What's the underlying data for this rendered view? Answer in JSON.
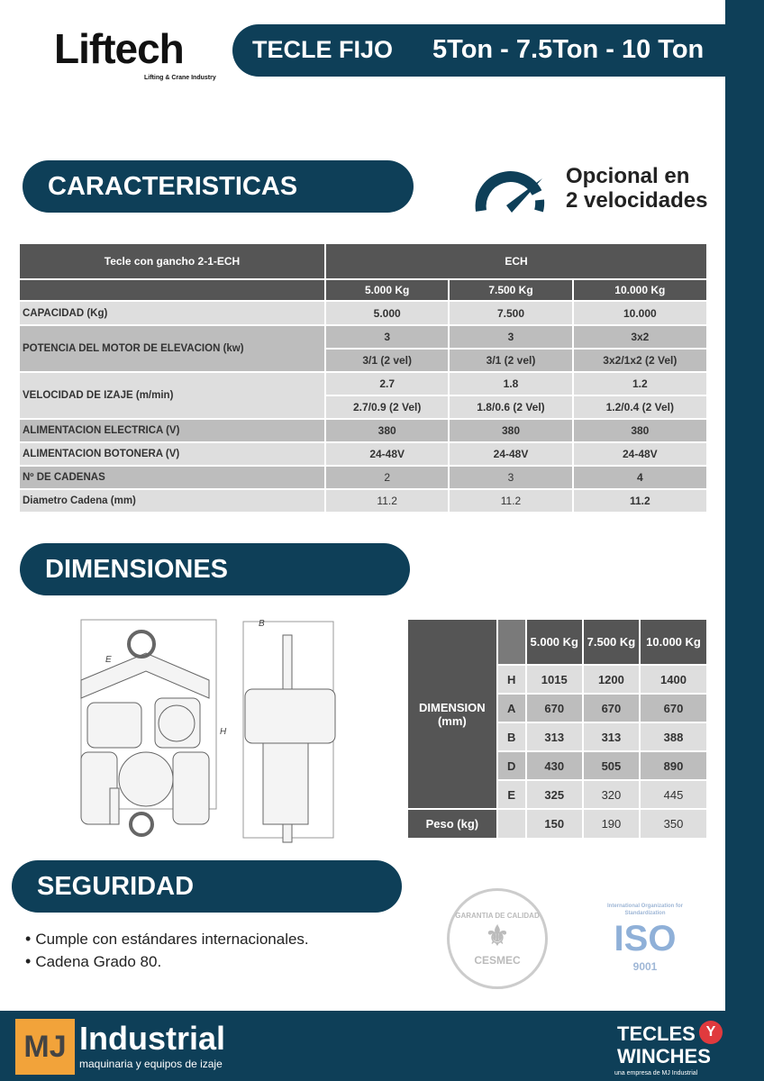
{
  "header": {
    "brand": "Liftech",
    "brand_sub": "Lifting & Crane Industry",
    "title": "TECLE FIJO",
    "capacities": "5Ton - 7.5Ton - 10 Ton"
  },
  "sections": {
    "caracteristicas": "CARACTERISTICAS",
    "dimensiones": "DIMENSIONES",
    "seguridad": "SEGURIDAD"
  },
  "optional": {
    "line1": "Opcional en",
    "line2": "2 velocidades",
    "icon": "speedometer-icon"
  },
  "specs": {
    "title": "Tecle con gancho 2-1-ECH",
    "model": "ECH",
    "columns": [
      "5.000 Kg",
      "7.500 Kg",
      "10.000 Kg"
    ],
    "rows": [
      {
        "label": "CAPACIDAD (Kg)",
        "values": [
          "5.000",
          "7.500",
          "10.000"
        ]
      },
      {
        "label": "POTENCIA DEL MOTOR DE ELEVACION (kw)",
        "values": [
          "3",
          "3",
          "3x2"
        ],
        "values2": [
          "3/1 (2 vel)",
          "3/1 (2 vel)",
          "3x2/1x2 (2 Vel)"
        ]
      },
      {
        "label": "VELOCIDAD DE IZAJE (m/min)",
        "values": [
          "2.7",
          "1.8",
          "1.2"
        ],
        "values2": [
          "2.7/0.9 (2 Vel)",
          "1.8/0.6 (2 Vel)",
          "1.2/0.4 (2 Vel)"
        ]
      },
      {
        "label": "ALIMENTACION ELECTRICA (V)",
        "values": [
          "380",
          "380",
          "380"
        ]
      },
      {
        "label": "ALIMENTACION BOTONERA (V)",
        "values": [
          "24-48V",
          "24-48V",
          "24-48V"
        ]
      },
      {
        "label": "Nº DE CADENAS",
        "values": [
          "2",
          "3",
          "4"
        ]
      },
      {
        "label": "Diametro Cadena (mm)",
        "values": [
          "11.2",
          "11.2",
          "11.2"
        ]
      }
    ]
  },
  "dimensions": {
    "label": "DIMENSION (mm)",
    "columns": [
      "5.000 Kg",
      "7.500 Kg",
      "10.000 Kg"
    ],
    "rows": [
      {
        "key": "H",
        "values": [
          "1015",
          "1200",
          "1400"
        ]
      },
      {
        "key": "A",
        "values": [
          "670",
          "670",
          "670"
        ]
      },
      {
        "key": "B",
        "values": [
          "313",
          "313",
          "388"
        ]
      },
      {
        "key": "D",
        "values": [
          "430",
          "505",
          "890"
        ]
      },
      {
        "key": "E",
        "values": [
          "325",
          "320",
          "445"
        ]
      }
    ],
    "weight_label": "Peso (kg)",
    "weight": [
      "150",
      "190",
      "350"
    ],
    "drawing_labels": {
      "e": "E",
      "b": "B",
      "h": "H"
    }
  },
  "safety": [
    "Cumple con estándares internacionales.",
    "Cadena Grado 80."
  ],
  "certs": {
    "cesmec": "GARANTIA DE CALIDAD",
    "cesmec_bottom": "CESMEC",
    "iso_ring": "International Organization for Standardization",
    "iso": "ISO",
    "iso_num": "9001"
  },
  "footer": {
    "mj": "MJ",
    "industrial": "Industrial",
    "industrial_sub": "maquinaria y equipos de izaje",
    "tecles": "TECLES",
    "y": "Y",
    "winches": "WINCHES",
    "winches_sub": "una empresa de MJ Industrial"
  },
  "colors": {
    "navy": "#0e3f58",
    "header_gray": "#555555",
    "row_light": "#dedede",
    "row_mid": "#bdbdbd",
    "mj_orange": "#f2a33a",
    "ty_red": "#e03a3e"
  }
}
